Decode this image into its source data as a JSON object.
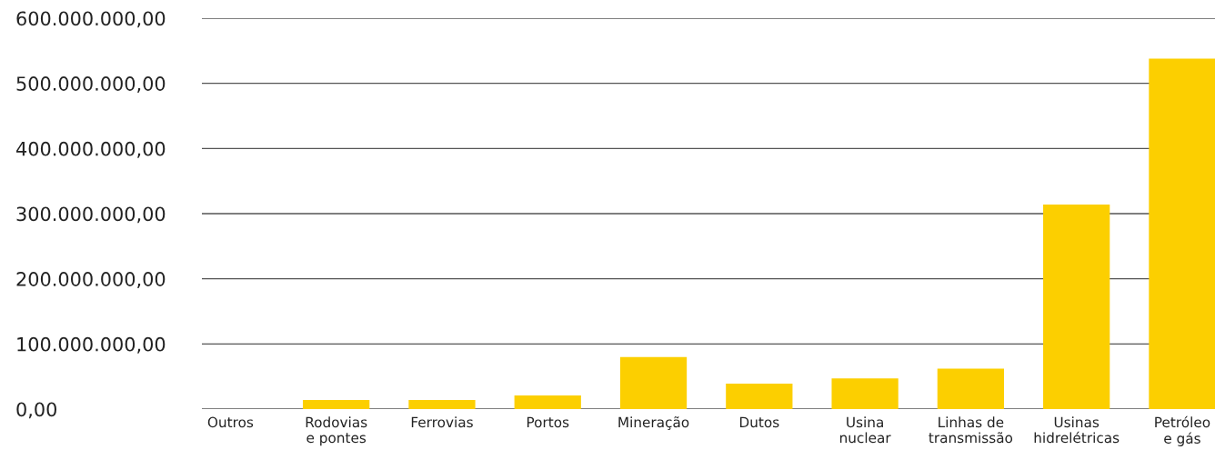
{
  "chart_data": {
    "type": "bar",
    "categories": [
      "Outros",
      "Rodovias\ne pontes",
      "Ferrovias",
      "Portos",
      "Mineração",
      "Dutos",
      "Usina\nnuclear",
      "Linhas de\ntransmissão",
      "Usinas\nhidrelétricas",
      "Petróleo\ne gás"
    ],
    "values": [
      0,
      14000000,
      14000000,
      21000000,
      80000000,
      39000000,
      47000000,
      62000000,
      314000000,
      538000000
    ],
    "color": "#fccf00",
    "ylim": [
      0,
      600000000
    ],
    "yticks": [
      {
        "value": 0,
        "label": "0,00"
      },
      {
        "value": 100000000,
        "label": "100.000.000,00"
      },
      {
        "value": 200000000,
        "label": "200.000.000,00"
      },
      {
        "value": 300000000,
        "label": "300.000.000,00"
      },
      {
        "value": 400000000,
        "label": "400.000.000,00"
      },
      {
        "value": 500000000,
        "label": "500.000.000,00"
      },
      {
        "value": 600000000,
        "label": "600.000.000,00"
      }
    ],
    "grid": "y"
  }
}
